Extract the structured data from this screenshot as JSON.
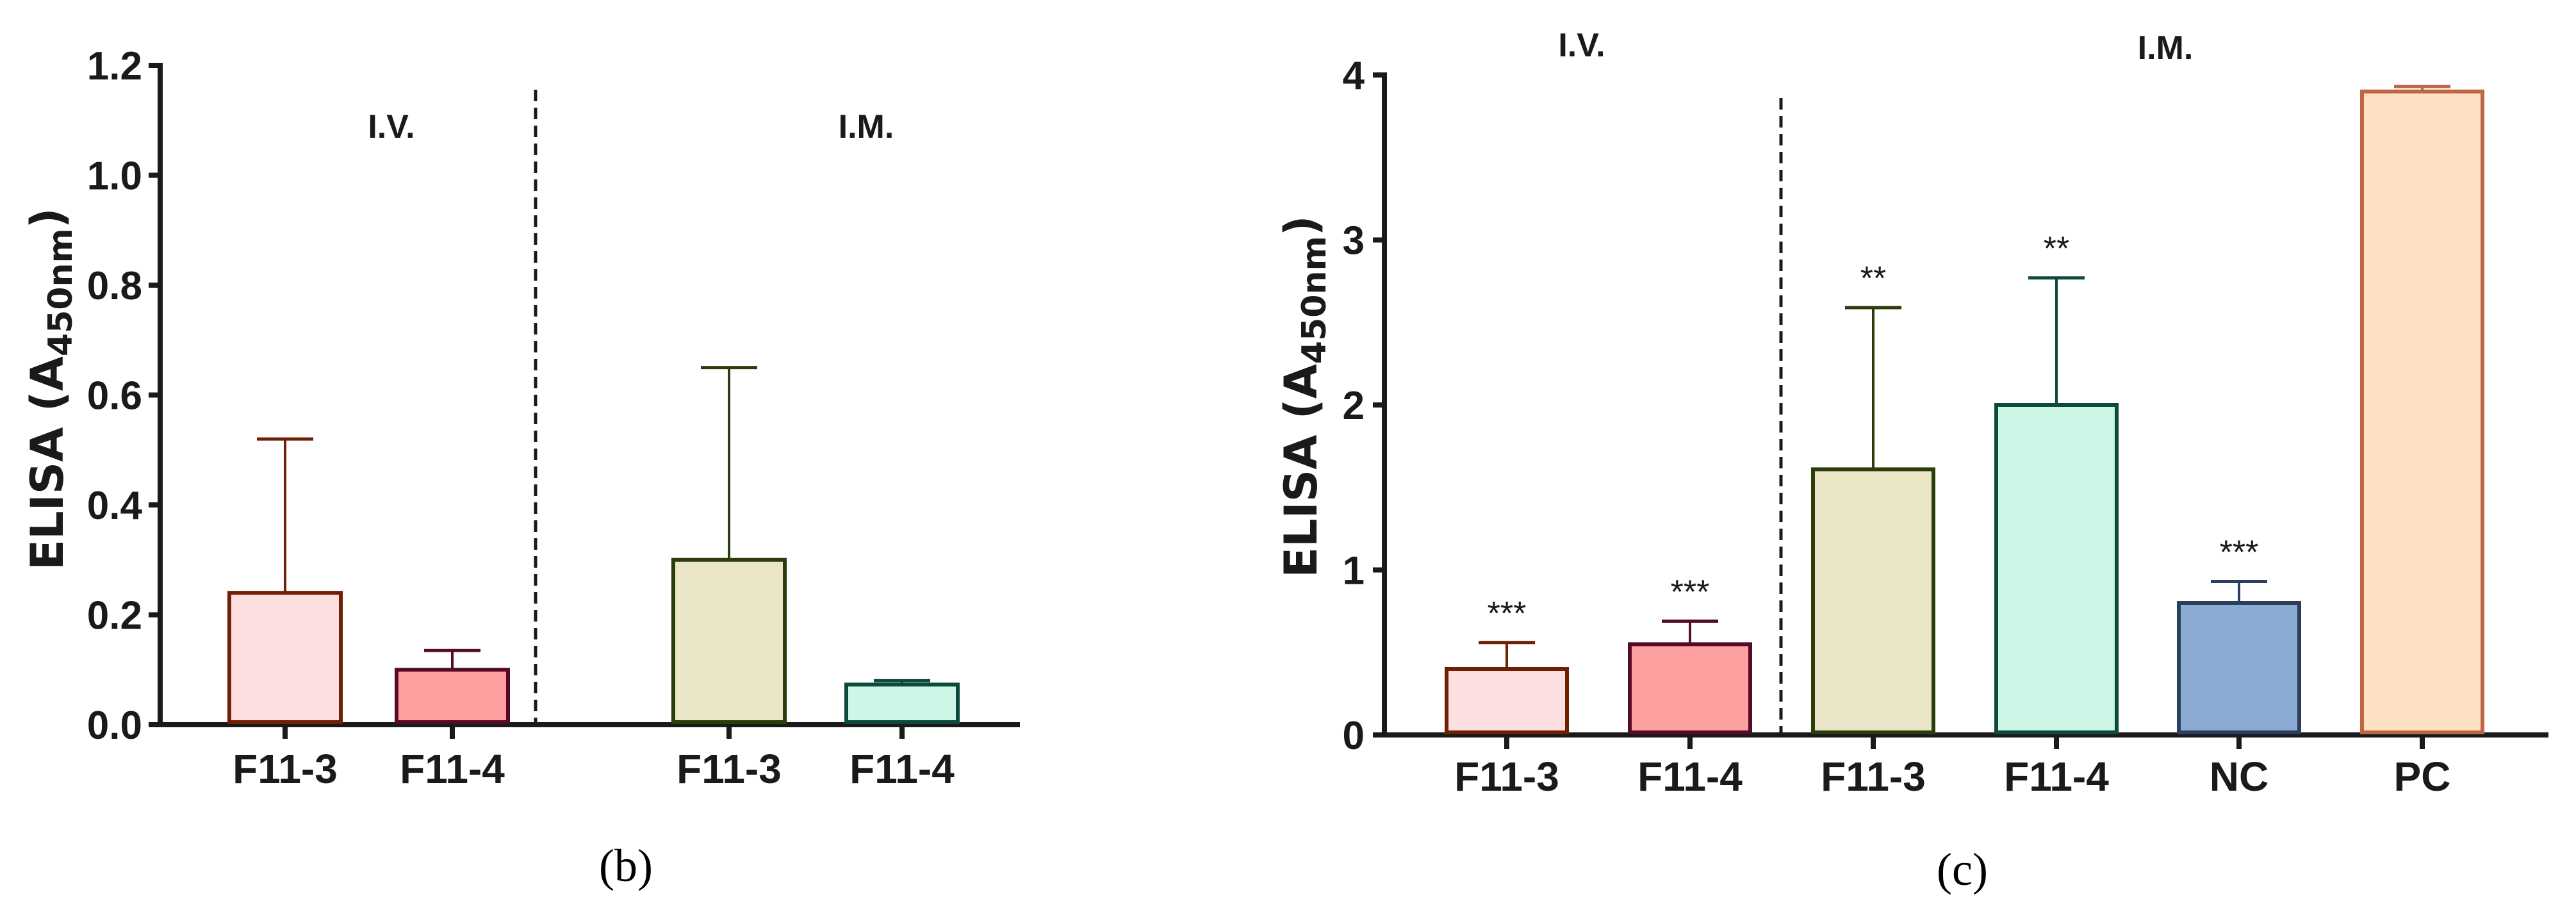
{
  "chart_data": [
    {
      "panel": "(b)",
      "type": "bar",
      "ylabel": "ELISA (A450nm)",
      "ylabel_main": "ELISA (A",
      "ylabel_sub": "450nm",
      "ylabel_close": ")",
      "ylim": [
        0,
        1.2
      ],
      "yticks": [
        "0.0",
        "0.2",
        "0.4",
        "0.6",
        "0.8",
        "1.0",
        "1.2"
      ],
      "groups": [
        {
          "label": "I.V.",
          "categories": [
            "F11-3",
            "F11-4"
          ]
        },
        {
          "label": "I.M.",
          "categories": [
            "F11-3",
            "F11-4"
          ]
        }
      ],
      "categories": [
        "F11-3",
        "F11-4",
        "F11-3",
        "F11-4"
      ],
      "values": [
        0.24,
        0.1,
        0.3,
        0.073
      ],
      "error_upper": [
        0.52,
        0.135,
        0.65,
        0.08
      ],
      "significance": [
        "",
        "",
        "",
        ""
      ],
      "fill_colors": [
        "#FDDFE1",
        "#FCA0A0",
        "#ECE6C8",
        "#CCF7E6"
      ],
      "stroke_colors": [
        "#6E1F04",
        "#560A2A",
        "#2B3D0A",
        "#0B4A3D"
      ],
      "grid": false,
      "legend": "none"
    },
    {
      "panel": "(c)",
      "type": "bar",
      "ylabel": "ELISA (A450nm)",
      "ylabel_main": "ELISA (A",
      "ylabel_sub": "450nm",
      "ylabel_close": ")",
      "ylim": [
        0,
        4
      ],
      "yticks": [
        "0",
        "1",
        "2",
        "3",
        "4"
      ],
      "groups": [
        {
          "label": "I.V.",
          "categories": [
            "F11-3",
            "F11-4"
          ]
        },
        {
          "label": "I.M.",
          "categories": [
            "F11-3",
            "F11-4",
            "NC",
            "PC"
          ]
        }
      ],
      "categories": [
        "F11-3",
        "F11-4",
        "F11-3",
        "F11-4",
        "NC",
        "PC"
      ],
      "values": [
        0.4,
        0.55,
        1.61,
        2.0,
        0.8,
        3.9
      ],
      "error_upper": [
        0.56,
        0.69,
        2.59,
        2.77,
        0.93,
        3.93
      ],
      "significance": [
        "***",
        "***",
        "**",
        "**",
        "***",
        ""
      ],
      "fill_colors": [
        "#FDDFE1",
        "#FCA0A0",
        "#ECE6C8",
        "#CCF7E6",
        "#8CABD3",
        "#FEE0C2"
      ],
      "stroke_colors": [
        "#6E1F04",
        "#560A2A",
        "#2B3D0A",
        "#0B4A3D",
        "#2A3E5E",
        "#BF6647"
      ],
      "grid": false,
      "legend": "none"
    }
  ],
  "captions": {
    "b": "(b)",
    "c": "(c)"
  },
  "colors": {
    "axis": "#1a1a1a",
    "background": "#ffffff"
  }
}
